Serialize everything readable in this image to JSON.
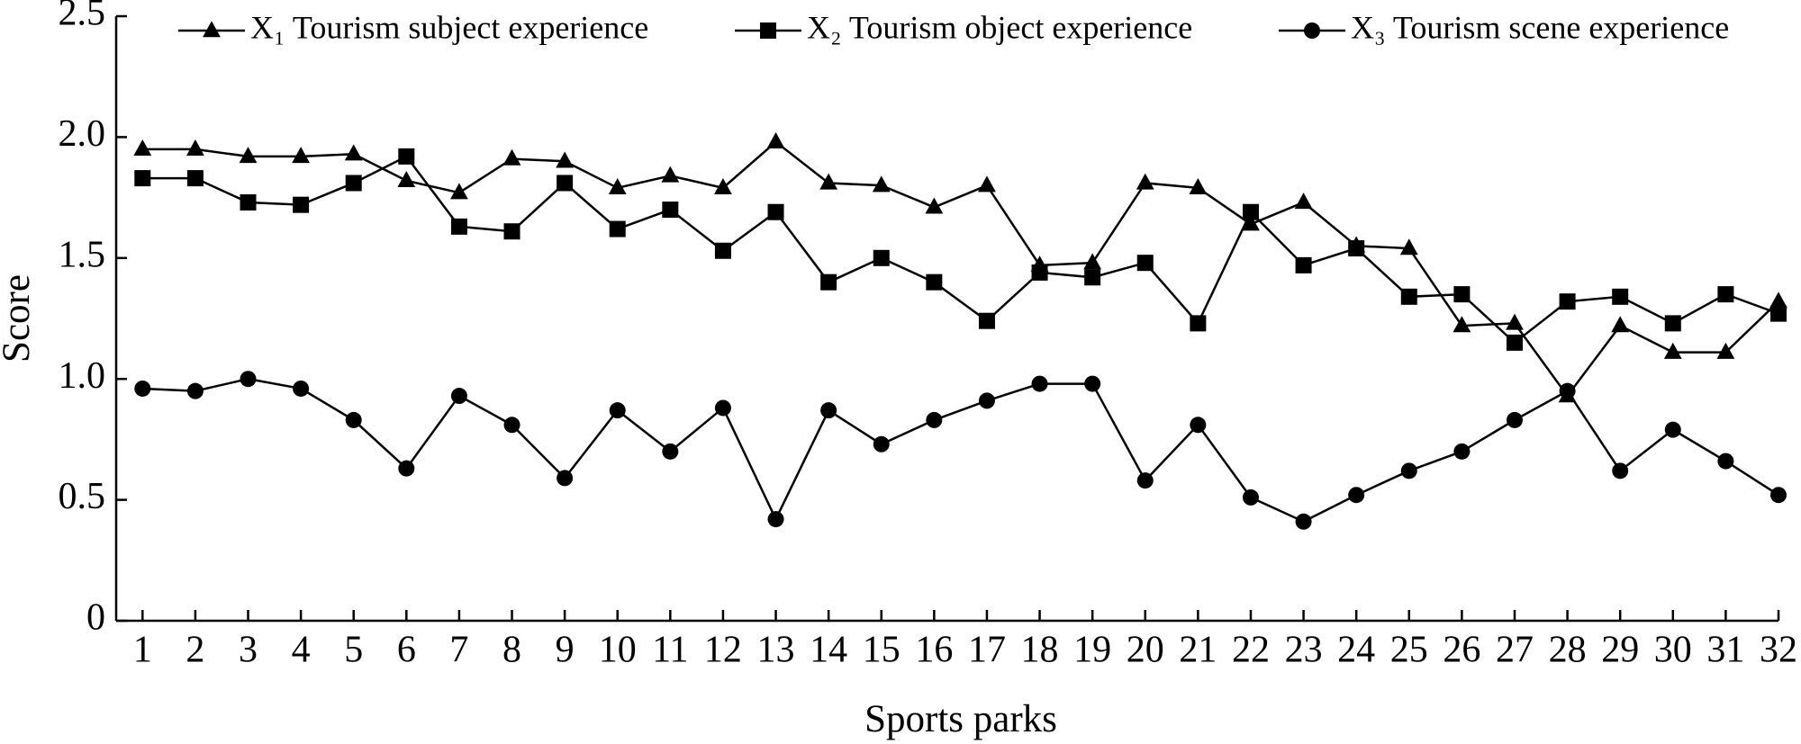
{
  "chart_data": {
    "type": "line",
    "xlabel": "Sports parks",
    "ylabel": "Score",
    "x": [
      1,
      2,
      3,
      4,
      5,
      6,
      7,
      8,
      9,
      10,
      11,
      12,
      13,
      14,
      15,
      16,
      17,
      18,
      19,
      20,
      21,
      22,
      23,
      24,
      25,
      26,
      27,
      28,
      29,
      30,
      31,
      32
    ],
    "xlim": [
      0.5,
      32
    ],
    "xticks": [
      1,
      2,
      3,
      4,
      5,
      6,
      7,
      8,
      9,
      10,
      11,
      12,
      13,
      14,
      15,
      16,
      17,
      18,
      19,
      20,
      21,
      22,
      23,
      24,
      25,
      26,
      27,
      28,
      29,
      30,
      31,
      32
    ],
    "ylim": [
      0,
      2.5
    ],
    "yticks": [
      0,
      0.5,
      {
        "value": 1,
        "label": "1.0"
      },
      1.5,
      {
        "value": 2,
        "label": "2.0"
      },
      2.5
    ],
    "legend": "top",
    "series": [
      {
        "name": "X₁ Tourism subject experience",
        "color": "#000000",
        "marker": "triangle",
        "values": [
          1.95,
          1.95,
          1.92,
          1.92,
          1.93,
          1.82,
          1.77,
          1.91,
          1.9,
          1.79,
          1.84,
          1.79,
          1.98,
          1.81,
          1.8,
          1.71,
          1.8,
          1.47,
          1.48,
          1.81,
          1.79,
          1.64,
          1.73,
          1.55,
          1.54,
          1.22,
          1.23,
          0.93,
          1.22,
          1.11,
          1.11,
          1.32
        ]
      },
      {
        "name": "X₂ Tourism object experience",
        "color": "#000000",
        "marker": "square",
        "values": [
          1.83,
          1.83,
          1.73,
          1.72,
          1.81,
          1.92,
          1.63,
          1.61,
          1.81,
          1.62,
          1.7,
          1.53,
          1.69,
          1.4,
          1.5,
          1.4,
          1.24,
          1.44,
          1.42,
          1.48,
          1.23,
          1.69,
          1.47,
          1.54,
          1.34,
          1.35,
          1.15,
          1.32,
          1.34,
          1.23,
          1.35,
          1.27
        ]
      },
      {
        "name": "X₃ Tourism scene experience",
        "color": "#000000",
        "marker": "circle",
        "values": [
          0.96,
          0.95,
          1.0,
          0.96,
          0.83,
          0.63,
          0.93,
          0.81,
          0.59,
          0.87,
          0.7,
          0.88,
          0.42,
          0.87,
          0.73,
          0.83,
          0.91,
          0.98,
          0.98,
          0.58,
          0.81,
          0.51,
          0.41,
          0.52,
          0.62,
          0.7,
          0.83,
          0.95,
          0.62,
          0.79,
          0.66,
          0.52
        ]
      }
    ]
  }
}
